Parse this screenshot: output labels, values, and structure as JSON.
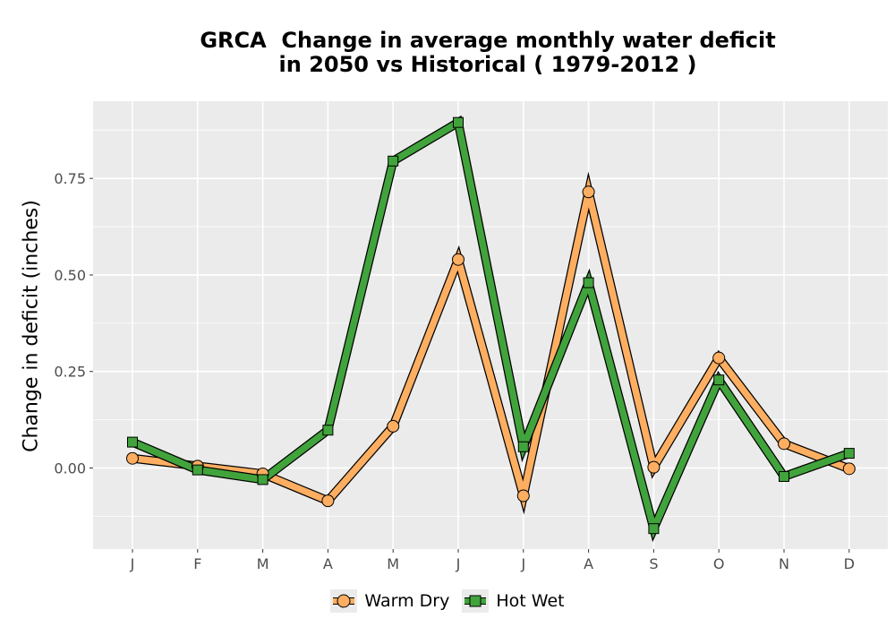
{
  "chart_data": {
    "type": "line",
    "title_line1": "GRCA  Change in average monthly water deficit",
    "title_line2": "in 2050 vs Historical ( 1979-2012 )",
    "xlabel": "",
    "ylabel": "Change in deficit (inches)",
    "categories": [
      "J",
      "F",
      "M",
      "A",
      "M",
      "J",
      "J",
      "A",
      "S",
      "O",
      "N",
      "D"
    ],
    "ylim": [
      -0.21,
      0.95
    ],
    "yticks": [
      0.0,
      0.25,
      0.5,
      0.75
    ],
    "ytick_labels": [
      "0.00",
      "0.25",
      "0.50",
      "0.75"
    ],
    "grid": true,
    "legend_position": "bottom",
    "series": [
      {
        "name": "Warm Dry",
        "color": "#FDAE61",
        "marker": "circle",
        "values": [
          0.025,
          0.005,
          -0.015,
          -0.085,
          0.108,
          0.54,
          -0.072,
          0.715,
          0.002,
          0.285,
          0.063,
          -0.002
        ]
      },
      {
        "name": "Hot Wet",
        "color": "#41A33C",
        "marker": "square",
        "values": [
          0.067,
          -0.005,
          -0.03,
          0.098,
          0.795,
          0.895,
          0.055,
          0.48,
          -0.157,
          0.228,
          -0.022,
          0.038
        ]
      }
    ]
  }
}
